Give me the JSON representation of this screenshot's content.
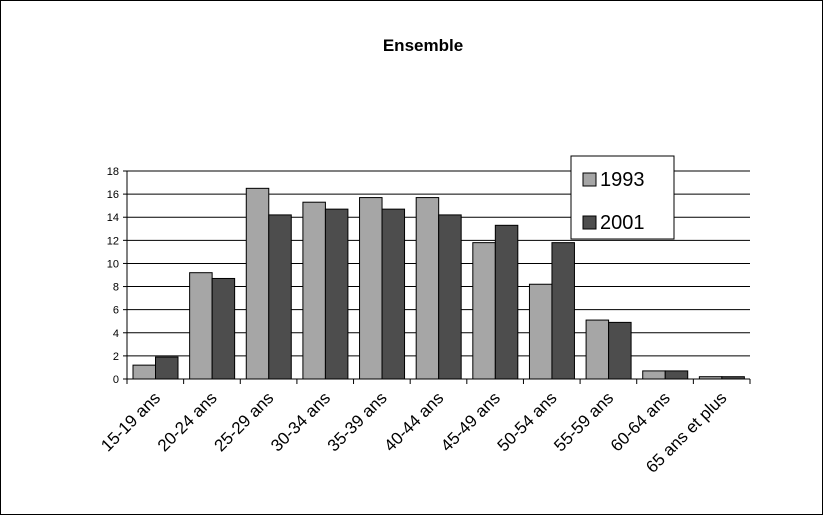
{
  "chart_data": {
    "type": "bar",
    "title": "Ensemble",
    "xlabel": "",
    "ylabel": "",
    "ylim": [
      0,
      18
    ],
    "yticks": [
      0,
      2,
      4,
      6,
      8,
      10,
      12,
      14,
      16,
      18
    ],
    "grid": true,
    "legend_position": "top-right",
    "categories": [
      "15-19 ans",
      "20-24 ans",
      "25-29 ans",
      "30-34 ans",
      "35-39 ans",
      "40-44 ans",
      "45-49 ans",
      "50-54 ans",
      "55-59 ans",
      "60-64 ans",
      "65 ans et plus"
    ],
    "series": [
      {
        "name": "1993",
        "color": "#a6a6a6",
        "values": [
          1.2,
          9.2,
          16.5,
          15.3,
          15.7,
          15.7,
          11.8,
          8.2,
          5.1,
          0.7,
          0.2
        ]
      },
      {
        "name": "2001",
        "color": "#4d4d4d",
        "values": [
          1.9,
          8.7,
          14.2,
          14.7,
          14.7,
          14.2,
          13.3,
          11.8,
          4.9,
          0.7,
          0.2
        ]
      }
    ]
  }
}
